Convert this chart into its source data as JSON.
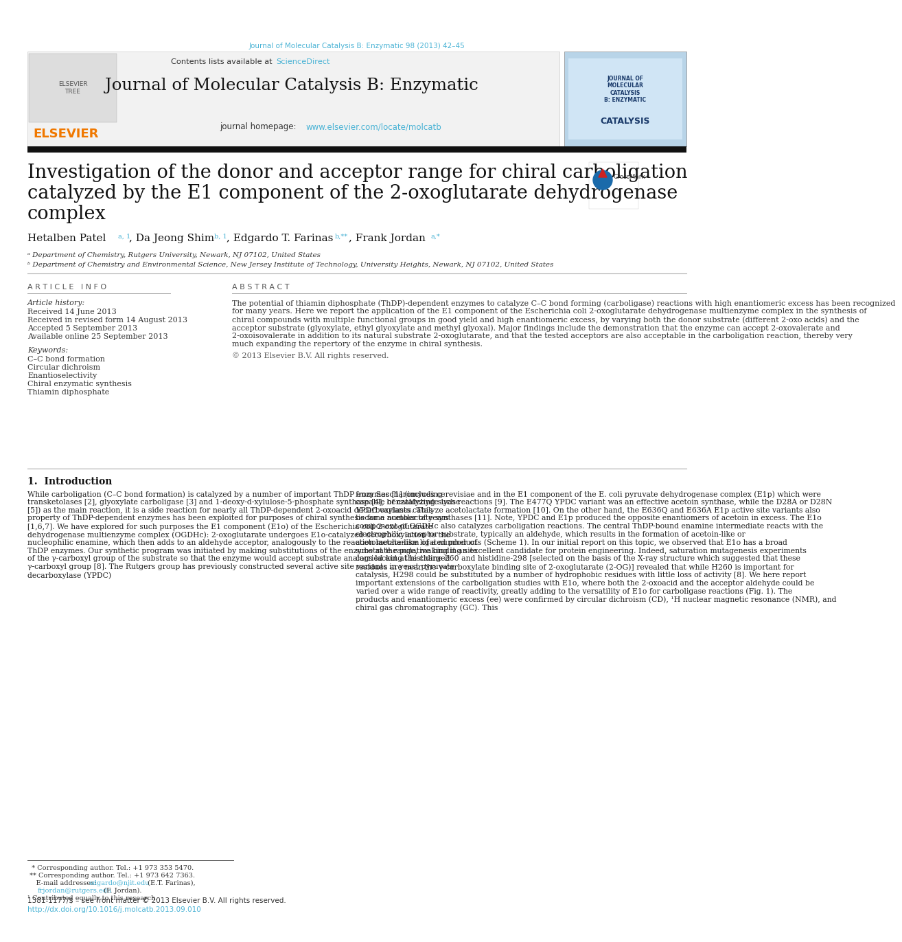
{
  "page_bg": "#ffffff",
  "top_journal_ref": "Journal of Molecular Catalysis B: Enzymatic 98 (2013) 42–45",
  "top_ref_color": "#4ab3d5",
  "sciencedirect_color": "#4ab3d5",
  "journal_title": "Journal of Molecular Catalysis B: Enzymatic",
  "homepage_url": "www.elsevier.com/locate/molcatb",
  "homepage_color": "#4ab3d5",
  "elsevier_color": "#f07800",
  "article_title_line1": "Investigation of the donor and acceptor range for chiral carboligation",
  "article_title_line2": "catalyzed by the E1 component of the 2-oxoglutarate dehydrogenase",
  "article_title_line3": "complex",
  "affil_a": "ᵃ Department of Chemistry, Rutgers University, Newark, NJ 07102, United States",
  "affil_b": "ᵇ Department of Chemistry and Environmental Science, New Jersey Institute of Technology, University Heights, Newark, NJ 07102, United States",
  "article_info_title": "A R T I C L E   I N F O",
  "article_history_label": "Article history:",
  "received": "Received 14 June 2013",
  "revised": "Received in revised form 14 August 2013",
  "accepted": "Accepted 5 September 2013",
  "available": "Available online 25 September 2013",
  "keywords_title": "Keywords:",
  "keywords": [
    "C–C bond formation",
    "Circular dichroism",
    "Enantioselectivity",
    "Chiral enzymatic synthesis",
    "Thiamin diphosphate"
  ],
  "abstract_title": "A B S T R A C T",
  "abstract_text": "The potential of thiamin diphosphate (ThDP)-dependent enzymes to catalyze C–C bond forming (carboligase) reactions with high enantiomeric excess has been recognized for many years. Here we report the application of the E1 component of the Escherichia coli 2-oxoglutarate dehydrogenase multienzyme complex in the synthesis of chiral compounds with multiple functional groups in good yield and high enantiomeric excess, by varying both the donor substrate (different 2-oxo acids) and the acceptor substrate (glyoxylate, ethyl glyoxylate and methyl glyoxal). Major findings include the demonstration that the enzyme can accept 2-oxovalerate and 2-oxoisovalerate in addition to its natural substrate 2-oxoglutarate, and that the tested acceptors are also acceptable in the carboligation reaction, thereby very much expanding the repertory of the enzyme in chiral synthesis.",
  "copyright": "© 2013 Elsevier B.V. All rights reserved.",
  "intro_title": "1.  Introduction",
  "intro_col1": "While carboligation (C–C bond formation) is catalyzed by a number of important ThDP enzymes [1] (including transketolases [2], glyoxylate carboligase [3] and 1-deoxy-d-xylulose-5-phosphate synthase [4], benzaldehyde lyase [5]) as the main reaction, it is a side reaction for nearly all ThDP-dependent 2-oxoacid decarboxylases. This property of ThDP-dependent enzymes has been exploited for purposes of chiral synthesis for a number of years [1,6,7]. We have explored for such purposes the E1 component (E1o) of the Escherichia coli 2-oxoglutarate dehydrogenase multienzyme complex (OGDHc): 2-oxoglutarate undergoes E1o-catalyzed decarboxylation to the nucleophilic enamine, which then adds to an aldehyde acceptor, analogously to the reaction mechanism of a number of ThDP enzymes. Our synthetic program was initiated by making substitutions of the enzyme at the putative binding site of the γ-carboxyl group of the substrate so that the enzyme would accept substrate analogs lacking the charged γ-carboxyl group [8]. The Rutgers group has previously constructed several active site variants in yeast pyruvate decarboxylase (YPDC)",
  "intro_col2": "from Saccharomyces cerevisiae and in the E1 component of the E. coli pyruvate dehydrogenase complex (E1p) which were capable of catalyzing such reactions [9]. The E477Q YPDC variant was an effective acetoin synthase, while the D28A or D28N YPDC variants catalyze acetolactate formation [10]. On the other hand, the E636Q and E636A E1p active site variants also became acetolactate synthases [11]. Note, YPDC and E1p produced the opposite enantiomers of acetoin in excess. The E1o component of OGDHc also catalyzes carboligation reactions. The central ThDP-bound enamine intermediate reacts with the electrophilic acceptor substrate, typically an aldehyde, which results in the formation of acetoin-like or acetolactate-like ligated products (Scheme 1). In our initial report on this topic, we observed that E1o has a broad substrate range, making it an excellent candidate for protein engineering. Indeed, saturation mutagenesis experiments carried out at histidine-260 and histidine-298 [selected on the basis of the X-ray structure which suggested that these residues are near the γ-carboxylate binding site of 2-oxoglutarate (2-OG)] revealed that while H260 is important for catalysis, H298 could be substituted by a number of hydrophobic residues with little loss of activity [8]. We here report important extensions of the carboligation studies with E1o, where both the 2-oxoacid and the acceptor aldehyde could be varied over a wide range of reactivity, greatly adding to the versatility of E1o for carboligase reactions (Fig. 1). The products and enantiomeric excess (ee) were confirmed by circular dichroism (CD), ¹H nuclear magnetic resonance (NMR), and chiral gas chromatography (GC). This",
  "footer_line1": "  * Corresponding author. Tel.: +1 973 353 5470.",
  "footer_line2": " ** Corresponding author. Tel.: +1 973 642 7363.",
  "footer_email1": "edgardo@njit.edu",
  "footer_after_email1": " (E.T. Farinas),",
  "footer_email2": "frjordan@rutgers.edu",
  "footer_after_email2": " (F. Jordan).",
  "footer_contrib": "¹ Contributed equally to this research.",
  "footer_issn": "1381-1177/$ – see front matter © 2013 Elsevier B.V. All rights reserved.",
  "footer_doi": "http://dx.doi.org/10.1016/j.molcatb.2013.09.010",
  "footer_doi_color": "#4ab3d5",
  "footer_email_color": "#4ab3d5"
}
